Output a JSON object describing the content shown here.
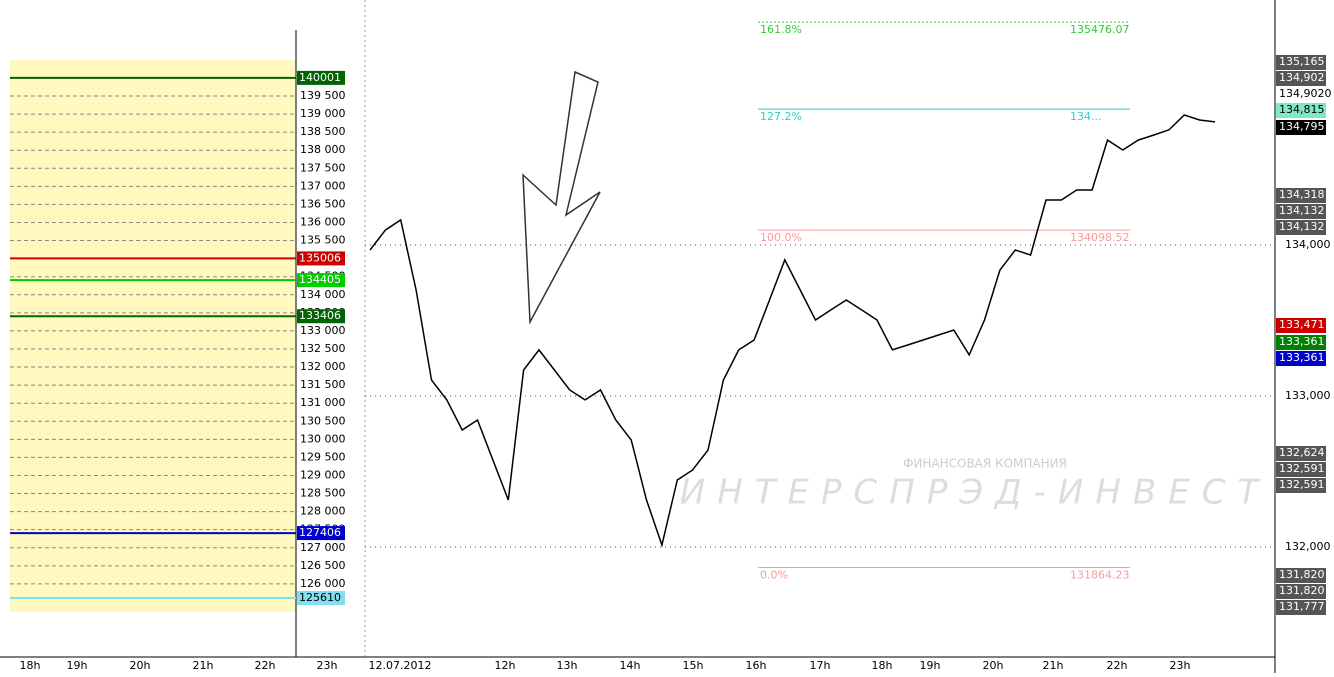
{
  "left_panel": {
    "yticks": [
      {
        "value": 139500,
        "label": "139 500"
      },
      {
        "value": 139000,
        "label": "139 000"
      },
      {
        "value": 138500,
        "label": "138 500"
      },
      {
        "value": 138000,
        "label": "138 000"
      },
      {
        "value": 137500,
        "label": "137 500"
      },
      {
        "value": 137000,
        "label": "137 000"
      },
      {
        "value": 136500,
        "label": "136 500"
      },
      {
        "value": 136000,
        "label": "136 000"
      },
      {
        "value": 135500,
        "label": "135 500"
      },
      {
        "value": 135000,
        "label": "135 000"
      },
      {
        "value": 134500,
        "label": "134 500"
      },
      {
        "value": 134000,
        "label": "134 000"
      },
      {
        "value": 133500,
        "label": "133 500"
      },
      {
        "value": 133000,
        "label": "133 000"
      },
      {
        "value": 132500,
        "label": "132 500"
      },
      {
        "value": 132000,
        "label": "132 000"
      },
      {
        "value": 131500,
        "label": "131 500"
      },
      {
        "value": 131000,
        "label": "131 000"
      },
      {
        "value": 130500,
        "label": "130 500"
      },
      {
        "value": 130000,
        "label": "130 000"
      },
      {
        "value": 129500,
        "label": "129 500"
      },
      {
        "value": 129000,
        "label": "129 000"
      },
      {
        "value": 128500,
        "label": "128 500"
      },
      {
        "value": 128000,
        "label": "128 000"
      },
      {
        "value": 127500,
        "label": "127 500"
      },
      {
        "value": 127000,
        "label": "127 000"
      },
      {
        "value": 126500,
        "label": "126 500"
      },
      {
        "value": 126000,
        "label": "126 000"
      }
    ],
    "levels": [
      {
        "value": 140001,
        "color": "#006400"
      },
      {
        "value": 135006,
        "color": "#cc0000"
      },
      {
        "value": 134405,
        "color": "#00cc00"
      },
      {
        "value": 133406,
        "color": "#006400"
      },
      {
        "value": 127406,
        "color": "#0000cc"
      },
      {
        "value": 125610,
        "color": "#80e0f0"
      }
    ],
    "times": [
      "18h",
      "19h",
      "20h",
      "21h",
      "22h",
      "23h"
    ]
  },
  "main_chart": {
    "yticks": [
      {
        "value": 134000,
        "label": "134,000"
      },
      {
        "value": 133000,
        "label": "133,000"
      },
      {
        "value": 132000,
        "label": "132,000"
      }
    ],
    "price_boxes": [
      {
        "label": "135,165",
        "color": "#555555"
      },
      {
        "label": "134,902",
        "color": "#555555"
      },
      {
        "label": "134,9020",
        "color": "#ffffff"
      },
      {
        "label": "134,815",
        "color": "#80e8c8"
      },
      {
        "label": "134,795",
        "color": "#000000"
      },
      {
        "label": "134,318",
        "color": "#555555"
      },
      {
        "label": "134,132",
        "color": "#555555"
      },
      {
        "label": "134,132",
        "color": "#555555"
      },
      {
        "label": "133,471",
        "color": "#cc0000"
      },
      {
        "label": "133,361",
        "color": "#008000"
      },
      {
        "label": "133,361",
        "color": "#0000cc"
      },
      {
        "label": "132,624",
        "color": "#555555"
      },
      {
        "label": "132,591",
        "color": "#555555"
      },
      {
        "label": "132,591",
        "color": "#555555"
      },
      {
        "label": "131,820",
        "color": "#555555"
      },
      {
        "label": "131,820",
        "color": "#555555"
      },
      {
        "label": "131,777",
        "color": "#555555"
      }
    ],
    "times": [
      "12.07.2012",
      "12h",
      "13h",
      "14h",
      "15h",
      "16h",
      "17h",
      "18h",
      "19h",
      "20h",
      "21h",
      "22h",
      "23h"
    ],
    "fibonacci": [
      {
        "level": "161.8%",
        "price": "135476.07",
        "value": 135476.07,
        "color": "#33cc33"
      },
      {
        "level": "127.2%",
        "price": "134...",
        "value": 134900,
        "color": "#33cccc"
      },
      {
        "level": "100.0%",
        "price": "134098.52",
        "value": 134098.52,
        "color": "#ff9999"
      },
      {
        "level": "0.0%",
        "price": "131864.23",
        "value": 131864.23,
        "color": "#ff9999"
      }
    ],
    "price_path": [
      133967,
      134099,
      134166,
      133702,
      133106,
      132974,
      132775,
      132841,
      132576,
      132311,
      133172,
      133305,
      133172,
      133040,
      132974,
      133040,
      132841,
      132709,
      132311,
      132013,
      132444,
      132510,
      132642,
      133106,
      133305,
      133371,
      133636,
      133901,
      133702,
      133503,
      133570,
      133636,
      133570,
      133503,
      133305,
      133338,
      133371,
      133404,
      133437,
      133272,
      133503,
      133834,
      133967,
      133934,
      134298,
      134298,
      134364,
      134364,
      134695,
      134629,
      134695,
      134728,
      134762,
      134861,
      134828,
      134815
    ]
  },
  "watermark": {
    "company_type": "ФИНАНСОВАЯ КОМПАНИЯ",
    "company_name": "ИНТЕРСПРЭД-ИНВЕСТ"
  }
}
